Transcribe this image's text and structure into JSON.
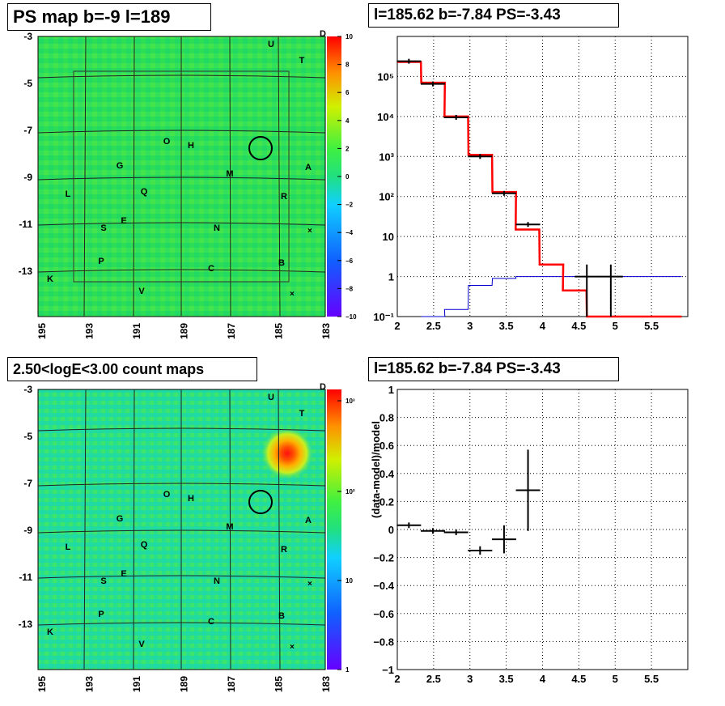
{
  "panels": {
    "tl": {
      "title": "PS map b=-9 l=189"
    },
    "tr": {
      "title": "l=185.62 b=-7.84 PS=-3.43"
    },
    "bl": {
      "title": "2.50<logE<3.00 count maps"
    },
    "br": {
      "title": "l=185.62 b=-7.84 PS=-3.43"
    }
  },
  "map_axes": {
    "y_ticks": [
      "-3",
      "-5",
      "-7",
      "-9",
      "-11",
      "-13"
    ],
    "x_ticks": [
      "195",
      "193",
      "191",
      "189",
      "187",
      "185",
      "183"
    ]
  },
  "map_letters": [
    "D",
    "U",
    "T",
    "O",
    "H",
    "G",
    "M",
    "A",
    "L",
    "Q",
    "R",
    "S",
    "E",
    "N",
    "P",
    "C",
    "B",
    "K",
    "V"
  ],
  "colorbar_ps": {
    "ticks": [
      "10",
      "8",
      "6",
      "4",
      "2",
      "0",
      "−2",
      "−4",
      "−6",
      "−8",
      "−10"
    ]
  },
  "colorbar_counts": {
    "ticks": [
      "10³",
      "10²",
      "10",
      "1"
    ]
  },
  "colors": {
    "series_data": "#000000",
    "series_model": "#ff0000",
    "series_background": "#0000cc",
    "map_base": "#22dd55"
  },
  "chart_data": [
    {
      "type": "line",
      "title": "l=185.62 b=-7.84 PS=-3.43",
      "xlabel": "",
      "ylabel": "",
      "xlim": [
        2,
        6
      ],
      "ylim": [
        0.1,
        1000000
      ],
      "yscale": "log",
      "x_ticks": [
        "2",
        "2.5",
        "3",
        "3.5",
        "4",
        "4.5",
        "5",
        "5.5"
      ],
      "y_ticks": [
        "10⁻¹",
        "1",
        "10",
        "10²",
        "10³",
        "10⁴",
        "10⁵"
      ],
      "grid": true,
      "series": [
        {
          "values": [
            [
              2.0,
              230000
            ],
            [
              2.33,
              70000
            ],
            [
              2.65,
              10000
            ],
            [
              2.98,
              1100
            ],
            [
              3.31,
              130
            ],
            [
              3.63,
              15
            ],
            [
              3.96,
              2
            ],
            [
              4.28,
              0.45
            ],
            [
              4.61,
              0.1
            ],
            [
              4.94,
              0.1
            ],
            [
              5.26,
              0.1
            ],
            [
              5.59,
              0.1
            ]
          ]
        },
        {
          "values": [
            [
              2.33,
              0.1
            ],
            [
              2.65,
              0.15
            ],
            [
              2.98,
              0.6
            ],
            [
              3.31,
              0.9
            ],
            [
              3.63,
              1.0
            ],
            [
              3.96,
              1.0
            ],
            [
              4.28,
              1.0
            ],
            [
              4.61,
              1.0
            ],
            [
              4.94,
              1.0
            ],
            [
              5.26,
              1.0
            ],
            [
              5.59,
              1.0
            ]
          ]
        },
        {
          "values": [
            [
              2.16,
              240000
            ],
            [
              2.49,
              65000
            ],
            [
              2.81,
              9500
            ],
            [
              3.14,
              1000
            ],
            [
              3.47,
              120
            ],
            [
              3.8,
              20
            ],
            [
              4.61,
              1
            ],
            [
              4.94,
              1
            ]
          ]
        }
      ]
    },
    {
      "type": "scatter",
      "title": "l=185.62 b=-7.84 PS=-3.43",
      "xlabel": "",
      "ylabel": "(data-model)/model",
      "xlim": [
        2,
        6
      ],
      "ylim": [
        -1,
        1
      ],
      "x_ticks": [
        "2",
        "2.5",
        "3",
        "3.5",
        "4",
        "4.5",
        "5",
        "5.5"
      ],
      "y_ticks": [
        "−1",
        "−0.8",
        "−0.6",
        "−0.4",
        "−0.2",
        "0",
        "0.2",
        "0.4",
        "0.6",
        "0.8",
        "1"
      ],
      "grid": true,
      "series": [
        {
          "values": [
            [
              2.16,
              0.03,
              0.02
            ],
            [
              2.49,
              -0.01,
              0.02
            ],
            [
              2.81,
              -0.02,
              0.02
            ],
            [
              3.14,
              -0.15,
              0.03
            ],
            [
              3.47,
              -0.07,
              0.1
            ],
            [
              3.8,
              0.28,
              0.29
            ]
          ]
        }
      ]
    }
  ]
}
